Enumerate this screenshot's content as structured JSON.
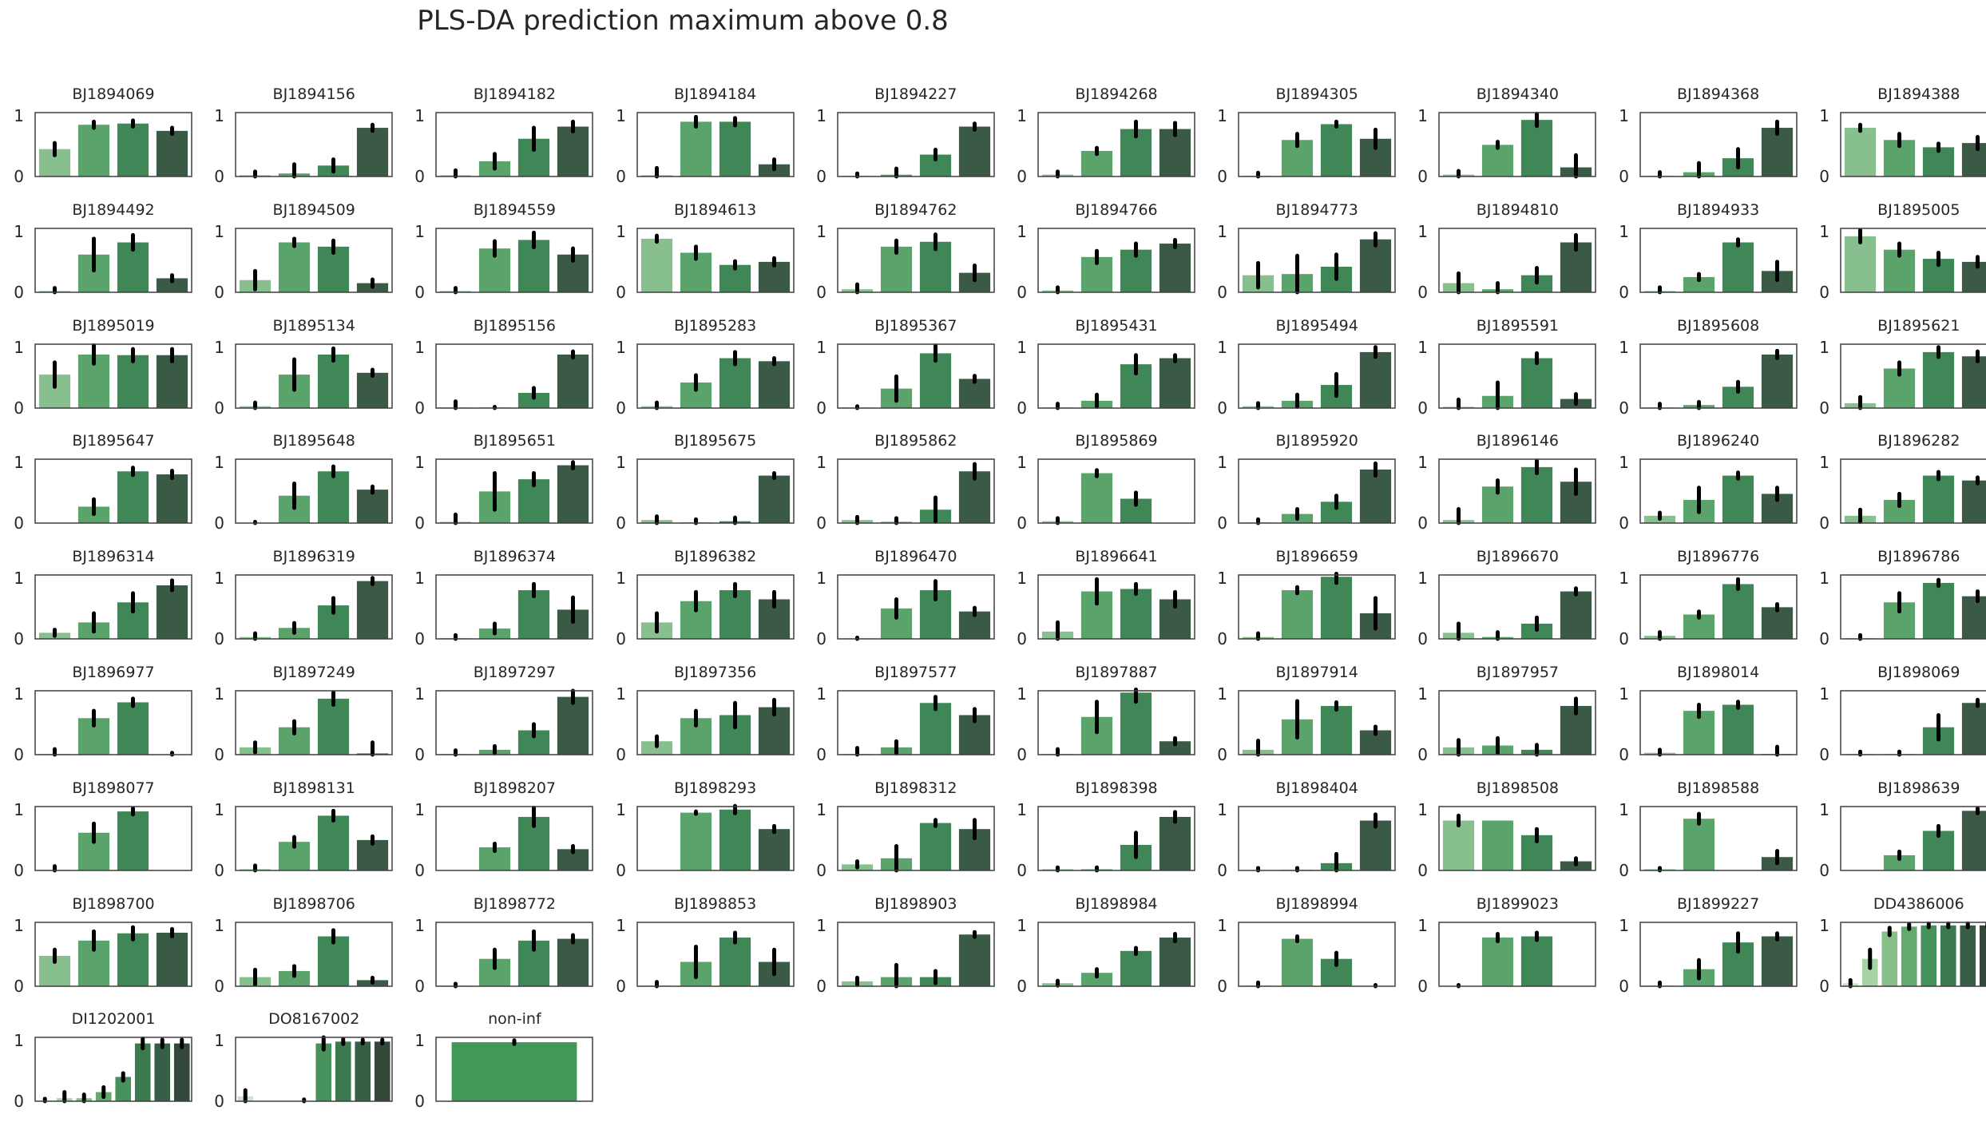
{
  "title": "PLS-DA prediction maximum above 0.8",
  "colors": {
    "palette_4": [
      "#88bf8e",
      "#5aa36a",
      "#3f8756",
      "#3a5a45"
    ],
    "palette_8": [
      "#c8e3c8",
      "#a6d3a6",
      "#86bf8a",
      "#63aa70",
      "#47925c",
      "#3b7a4f",
      "#375f45",
      "#33473a"
    ],
    "single": "#419859",
    "errorbar": "#000000",
    "axes": "#3f3f3f"
  },
  "chart_data": {
    "type": "bar",
    "panel_count": 83,
    "ylim": [
      0,
      1.05
    ],
    "yticks": [
      "0",
      "1"
    ],
    "grid": false,
    "panels": [
      {
        "title": "BJ1894069",
        "values": [
          0.45,
          0.85,
          0.87,
          0.75
        ],
        "err": [
          0.1,
          0.05,
          0.05,
          0.05
        ]
      },
      {
        "title": "BJ1894156",
        "values": [
          0.02,
          0.05,
          0.18,
          0.8
        ],
        "err": [
          0.06,
          0.15,
          0.1,
          0.05
        ]
      },
      {
        "title": "BJ1894182",
        "values": [
          0.02,
          0.25,
          0.62,
          0.82
        ],
        "err": [
          0.08,
          0.12,
          0.18,
          0.08
        ]
      },
      {
        "title": "BJ1894184",
        "values": [
          0.02,
          0.9,
          0.9,
          0.2
        ],
        "err": [
          0.12,
          0.08,
          0.06,
          0.08
        ]
      },
      {
        "title": "BJ1894227",
        "values": [
          0.01,
          0.03,
          0.36,
          0.82
        ],
        "err": [
          0.04,
          0.1,
          0.08,
          0.05
        ]
      },
      {
        "title": "BJ1894268",
        "values": [
          0.03,
          0.42,
          0.78,
          0.78
        ],
        "err": [
          0.05,
          0.05,
          0.12,
          0.1
        ]
      },
      {
        "title": "BJ1894305",
        "values": [
          0.01,
          0.6,
          0.86,
          0.62
        ],
        "err": [
          0.05,
          0.1,
          0.04,
          0.15
        ]
      },
      {
        "title": "BJ1894340",
        "values": [
          0.03,
          0.52,
          0.93,
          0.15
        ],
        "err": [
          0.06,
          0.05,
          0.1,
          0.2
        ]
      },
      {
        "title": "BJ1894368",
        "values": [
          0.01,
          0.07,
          0.3,
          0.8
        ],
        "err": [
          0.06,
          0.15,
          0.15,
          0.1
        ]
      },
      {
        "title": "BJ1894388",
        "values": [
          0.8,
          0.6,
          0.48,
          0.55
        ],
        "err": [
          0.05,
          0.1,
          0.06,
          0.1
        ]
      },
      {
        "title": "BJ1894492",
        "values": [
          0.02,
          0.62,
          0.82,
          0.23
        ],
        "err": [
          0.05,
          0.26,
          0.12,
          0.05
        ]
      },
      {
        "title": "BJ1894509",
        "values": [
          0.2,
          0.82,
          0.75,
          0.15
        ],
        "err": [
          0.15,
          0.06,
          0.1,
          0.06
        ]
      },
      {
        "title": "BJ1894559",
        "values": [
          0.02,
          0.72,
          0.86,
          0.62
        ],
        "err": [
          0.05,
          0.12,
          0.12,
          0.1
        ]
      },
      {
        "title": "BJ1894613",
        "values": [
          0.88,
          0.65,
          0.45,
          0.5
        ],
        "err": [
          0.05,
          0.1,
          0.06,
          0.06
        ]
      },
      {
        "title": "BJ1894762",
        "values": [
          0.05,
          0.75,
          0.83,
          0.32
        ],
        "err": [
          0.08,
          0.1,
          0.12,
          0.12
        ]
      },
      {
        "title": "BJ1894766",
        "values": [
          0.03,
          0.58,
          0.7,
          0.8
        ],
        "err": [
          0.05,
          0.1,
          0.1,
          0.06
        ]
      },
      {
        "title": "BJ1894773",
        "values": [
          0.28,
          0.3,
          0.42,
          0.87
        ],
        "err": [
          0.2,
          0.3,
          0.2,
          0.1
        ]
      },
      {
        "title": "BJ1894810",
        "values": [
          0.15,
          0.05,
          0.28,
          0.82
        ],
        "err": [
          0.16,
          0.1,
          0.12,
          0.12
        ]
      },
      {
        "title": "BJ1894933",
        "values": [
          0.02,
          0.25,
          0.82,
          0.35
        ],
        "err": [
          0.06,
          0.05,
          0.05,
          0.15
        ]
      },
      {
        "title": "BJ1895005",
        "values": [
          0.92,
          0.7,
          0.55,
          0.5
        ],
        "err": [
          0.1,
          0.1,
          0.1,
          0.08
        ]
      },
      {
        "title": "BJ1895019",
        "values": [
          0.55,
          0.88,
          0.87,
          0.87
        ],
        "err": [
          0.2,
          0.15,
          0.1,
          0.1
        ]
      },
      {
        "title": "BJ1895134",
        "values": [
          0.03,
          0.55,
          0.88,
          0.58
        ],
        "err": [
          0.06,
          0.25,
          0.1,
          0.05
        ]
      },
      {
        "title": "BJ1895156",
        "values": [
          0.01,
          0.01,
          0.25,
          0.88
        ],
        "err": [
          0.1,
          0.01,
          0.08,
          0.05
        ]
      },
      {
        "title": "BJ1895283",
        "values": [
          0.03,
          0.42,
          0.82,
          0.77
        ],
        "err": [
          0.06,
          0.12,
          0.1,
          0.05
        ]
      },
      {
        "title": "BJ1895367",
        "values": [
          0.01,
          0.32,
          0.9,
          0.48
        ],
        "err": [
          0.02,
          0.2,
          0.12,
          0.05
        ]
      },
      {
        "title": "BJ1895431",
        "values": [
          0.01,
          0.12,
          0.72,
          0.82
        ],
        "err": [
          0.06,
          0.1,
          0.15,
          0.05
        ]
      },
      {
        "title": "BJ1895494",
        "values": [
          0.03,
          0.12,
          0.38,
          0.92
        ],
        "err": [
          0.05,
          0.1,
          0.18,
          0.08
        ]
      },
      {
        "title": "BJ1895591",
        "values": [
          0.02,
          0.2,
          0.82,
          0.15
        ],
        "err": [
          0.12,
          0.22,
          0.08,
          0.08
        ]
      },
      {
        "title": "BJ1895608",
        "values": [
          0.01,
          0.05,
          0.35,
          0.88
        ],
        "err": [
          0.06,
          0.05,
          0.08,
          0.06
        ]
      },
      {
        "title": "BJ1895621",
        "values": [
          0.08,
          0.65,
          0.92,
          0.85
        ],
        "err": [
          0.1,
          0.1,
          0.08,
          0.08
        ]
      },
      {
        "title": "BJ1895647",
        "values": [
          0.0,
          0.27,
          0.85,
          0.8
        ],
        "err": [
          0.0,
          0.12,
          0.06,
          0.06
        ]
      },
      {
        "title": "BJ1895648",
        "values": [
          0.0,
          0.45,
          0.85,
          0.55
        ],
        "err": [
          0.02,
          0.2,
          0.08,
          0.05
        ]
      },
      {
        "title": "BJ1895651",
        "values": [
          0.02,
          0.52,
          0.72,
          0.95
        ],
        "err": [
          0.12,
          0.3,
          0.1,
          0.05
        ]
      },
      {
        "title": "BJ1895675",
        "values": [
          0.05,
          0.01,
          0.03,
          0.78
        ],
        "err": [
          0.06,
          0.05,
          0.06,
          0.04
        ]
      },
      {
        "title": "BJ1895862",
        "values": [
          0.05,
          0.02,
          0.22,
          0.85
        ],
        "err": [
          0.05,
          0.06,
          0.2,
          0.12
        ]
      },
      {
        "title": "BJ1895869",
        "values": [
          0.03,
          0.82,
          0.4,
          0.0
        ],
        "err": [
          0.05,
          0.05,
          0.1,
          0.0
        ]
      },
      {
        "title": "BJ1895920",
        "values": [
          0.01,
          0.15,
          0.35,
          0.88
        ],
        "err": [
          0.05,
          0.08,
          0.1,
          0.1
        ]
      },
      {
        "title": "BJ1896146",
        "values": [
          0.05,
          0.6,
          0.92,
          0.68
        ],
        "err": [
          0.18,
          0.1,
          0.1,
          0.2
        ]
      },
      {
        "title": "BJ1896240",
        "values": [
          0.12,
          0.38,
          0.78,
          0.48
        ],
        "err": [
          0.05,
          0.2,
          0.05,
          0.1
        ]
      },
      {
        "title": "BJ1896282",
        "values": [
          0.12,
          0.38,
          0.78,
          0.7
        ],
        "err": [
          0.1,
          0.1,
          0.06,
          0.05
        ]
      },
      {
        "title": "BJ1896314",
        "values": [
          0.1,
          0.27,
          0.6,
          0.88
        ],
        "err": [
          0.05,
          0.15,
          0.15,
          0.08
        ]
      },
      {
        "title": "BJ1896319",
        "values": [
          0.03,
          0.18,
          0.55,
          0.95
        ],
        "err": [
          0.06,
          0.08,
          0.12,
          0.05
        ]
      },
      {
        "title": "BJ1896374",
        "values": [
          0.01,
          0.17,
          0.8,
          0.48
        ],
        "err": [
          0.05,
          0.08,
          0.1,
          0.2
        ]
      },
      {
        "title": "BJ1896382",
        "values": [
          0.27,
          0.62,
          0.8,
          0.65
        ],
        "err": [
          0.15,
          0.15,
          0.1,
          0.12
        ]
      },
      {
        "title": "BJ1896470",
        "values": [
          0.0,
          0.5,
          0.8,
          0.45
        ],
        "err": [
          0.02,
          0.15,
          0.15,
          0.06
        ]
      },
      {
        "title": "BJ1896641",
        "values": [
          0.12,
          0.78,
          0.82,
          0.65
        ],
        "err": [
          0.15,
          0.2,
          0.08,
          0.12
        ]
      },
      {
        "title": "BJ1896659",
        "values": [
          0.03,
          0.8,
          1.02,
          0.42
        ],
        "err": [
          0.06,
          0.05,
          0.1,
          0.25
        ]
      },
      {
        "title": "BJ1896670",
        "values": [
          0.1,
          0.03,
          0.25,
          0.78
        ],
        "err": [
          0.15,
          0.08,
          0.1,
          0.05
        ]
      },
      {
        "title": "BJ1896776",
        "values": [
          0.05,
          0.4,
          0.9,
          0.52
        ],
        "err": [
          0.06,
          0.05,
          0.08,
          0.05
        ]
      },
      {
        "title": "BJ1896786",
        "values": [
          0.01,
          0.6,
          0.92,
          0.7
        ],
        "err": [
          0.05,
          0.15,
          0.05,
          0.08
        ]
      },
      {
        "title": "BJ1896977",
        "values": [
          0.01,
          0.6,
          0.86,
          0.0
        ],
        "err": [
          0.08,
          0.12,
          0.06,
          0.03
        ]
      },
      {
        "title": "BJ1897249",
        "values": [
          0.12,
          0.45,
          0.92,
          0.02
        ],
        "err": [
          0.08,
          0.1,
          0.1,
          0.18
        ]
      },
      {
        "title": "BJ1897297",
        "values": [
          0.01,
          0.08,
          0.4,
          0.95
        ],
        "err": [
          0.06,
          0.06,
          0.1,
          0.1
        ]
      },
      {
        "title": "BJ1897356",
        "values": [
          0.22,
          0.6,
          0.65,
          0.78
        ],
        "err": [
          0.08,
          0.12,
          0.2,
          0.12
        ]
      },
      {
        "title": "BJ1897577",
        "values": [
          0.01,
          0.12,
          0.85,
          0.65
        ],
        "err": [
          0.1,
          0.1,
          0.1,
          0.1
        ]
      },
      {
        "title": "BJ1897887",
        "values": [
          0.01,
          0.62,
          1.02,
          0.22
        ],
        "err": [
          0.08,
          0.25,
          0.15,
          0.05
        ]
      },
      {
        "title": "BJ1897914",
        "values": [
          0.08,
          0.58,
          0.8,
          0.4
        ],
        "err": [
          0.15,
          0.3,
          0.06,
          0.06
        ]
      },
      {
        "title": "BJ1897957",
        "values": [
          0.12,
          0.15,
          0.08,
          0.8
        ],
        "err": [
          0.12,
          0.12,
          0.08,
          0.12
        ]
      },
      {
        "title": "BJ1898014",
        "values": [
          0.03,
          0.72,
          0.82,
          0.01
        ],
        "err": [
          0.05,
          0.1,
          0.05,
          0.12
        ]
      },
      {
        "title": "BJ1898069",
        "values": [
          0.01,
          0.01,
          0.45,
          0.85
        ],
        "err": [
          0.04,
          0.04,
          0.2,
          0.05
        ]
      },
      {
        "title": "BJ1898077",
        "values": [
          0.01,
          0.62,
          0.97,
          0.0
        ],
        "err": [
          0.06,
          0.15,
          0.05,
          0.0
        ]
      },
      {
        "title": "BJ1898131",
        "values": [
          0.02,
          0.47,
          0.9,
          0.5
        ],
        "err": [
          0.06,
          0.08,
          0.08,
          0.06
        ]
      },
      {
        "title": "BJ1898207",
        "values": [
          0.0,
          0.38,
          0.88,
          0.35
        ],
        "err": [
          0.0,
          0.06,
          0.15,
          0.05
        ]
      },
      {
        "title": "BJ1898293",
        "values": [
          0.0,
          0.95,
          1.0,
          0.68
        ],
        "err": [
          0.0,
          0.02,
          0.06,
          0.05
        ]
      },
      {
        "title": "BJ1898312",
        "values": [
          0.1,
          0.2,
          0.78,
          0.68
        ],
        "err": [
          0.05,
          0.2,
          0.05,
          0.15
        ]
      },
      {
        "title": "BJ1898398",
        "values": [
          0.02,
          0.02,
          0.42,
          0.88
        ],
        "err": [
          0.03,
          0.03,
          0.2,
          0.08
        ]
      },
      {
        "title": "BJ1898404",
        "values": [
          0.0,
          0.01,
          0.12,
          0.82
        ],
        "err": [
          0.04,
          0.03,
          0.15,
          0.1
        ]
      },
      {
        "title": "BJ1898508",
        "values": [
          0.82,
          0.82,
          0.58,
          0.15
        ],
        "err": [
          0.08,
          0.0,
          0.1,
          0.05
        ]
      },
      {
        "title": "BJ1898588",
        "values": [
          0.02,
          0.85,
          0.0,
          0.22
        ],
        "err": [
          0.02,
          0.08,
          0.0,
          0.1
        ]
      },
      {
        "title": "BJ1898639",
        "values": [
          0.0,
          0.25,
          0.65,
          0.98
        ],
        "err": [
          0.0,
          0.06,
          0.08,
          0.04
        ]
      },
      {
        "title": "BJ1898700",
        "values": [
          0.5,
          0.75,
          0.87,
          0.88
        ],
        "err": [
          0.1,
          0.15,
          0.1,
          0.06
        ]
      },
      {
        "title": "BJ1898706",
        "values": [
          0.15,
          0.25,
          0.82,
          0.1
        ],
        "err": [
          0.12,
          0.08,
          0.1,
          0.04
        ]
      },
      {
        "title": "BJ1898772",
        "values": [
          0.01,
          0.45,
          0.75,
          0.78
        ],
        "err": [
          0.03,
          0.15,
          0.15,
          0.06
        ]
      },
      {
        "title": "BJ1898853",
        "values": [
          0.01,
          0.4,
          0.8,
          0.4
        ],
        "err": [
          0.06,
          0.25,
          0.08,
          0.2
        ]
      },
      {
        "title": "BJ1898903",
        "values": [
          0.08,
          0.15,
          0.15,
          0.85
        ],
        "err": [
          0.06,
          0.2,
          0.1,
          0.04
        ]
      },
      {
        "title": "BJ1898984",
        "values": [
          0.05,
          0.22,
          0.58,
          0.8
        ],
        "err": [
          0.04,
          0.06,
          0.05,
          0.06
        ]
      },
      {
        "title": "BJ1898994",
        "values": [
          0.01,
          0.78,
          0.45,
          0.0
        ],
        "err": [
          0.05,
          0.04,
          0.1,
          0.02
        ]
      },
      {
        "title": "BJ1899023",
        "values": [
          0.0,
          0.8,
          0.82,
          0.0
        ],
        "err": [
          0.02,
          0.06,
          0.06,
          0.0
        ]
      },
      {
        "title": "BJ1899227",
        "values": [
          0.01,
          0.28,
          0.72,
          0.82
        ],
        "err": [
          0.05,
          0.15,
          0.15,
          0.05
        ]
      },
      {
        "title": "DD4386006",
        "values": [
          0.05,
          0.45,
          0.9,
          0.98,
          1.0,
          1.0,
          1.0,
          1.0
        ],
        "err": [
          0.05,
          0.15,
          0.06,
          0.04,
          0.03,
          0.03,
          0.03,
          0.03
        ]
      },
      {
        "title": "DI1202001",
        "values": [
          0.01,
          0.05,
          0.05,
          0.15,
          0.4,
          0.95,
          0.95,
          0.95
        ],
        "err": [
          0.03,
          0.1,
          0.06,
          0.08,
          0.06,
          0.08,
          0.06,
          0.06
        ]
      },
      {
        "title": "DO8167002",
        "values": [
          0.08,
          0.0,
          0.0,
          0.0,
          0.95,
          0.98,
          0.98,
          0.98
        ],
        "err": [
          0.1,
          0.0,
          0.0,
          0.03,
          0.1,
          0.04,
          0.03,
          0.03
        ]
      },
      {
        "title": "non-inf",
        "values": [
          0.97
        ],
        "err": [
          0.03
        ]
      }
    ]
  }
}
